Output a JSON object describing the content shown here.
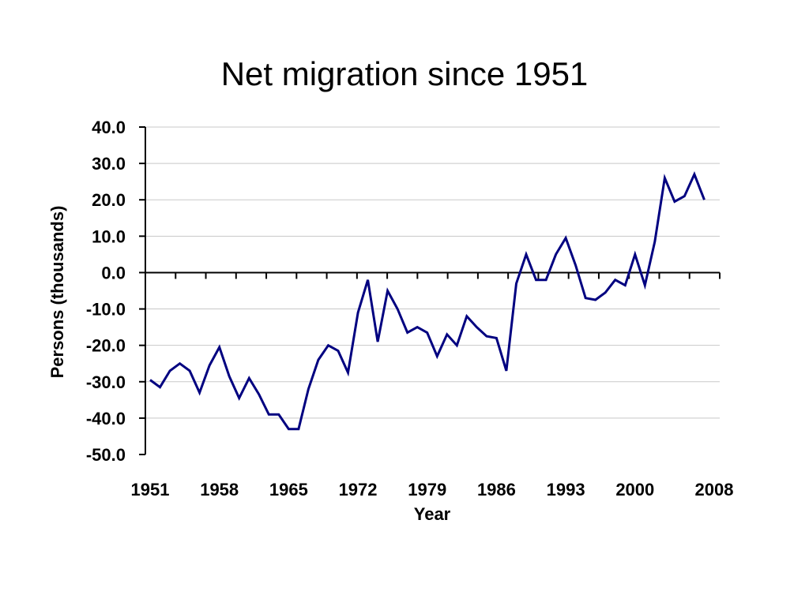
{
  "chart_data": {
    "type": "line",
    "title": "Net migration since 1951",
    "xlabel": "Year",
    "ylabel": "Persons (thousands)",
    "xlim": [
      1951,
      2008
    ],
    "ylim": [
      -50,
      40
    ],
    "x_ticks": [
      "1951",
      "1958",
      "1965",
      "1972",
      "1979",
      "1986",
      "1993",
      "2000",
      "2008"
    ],
    "y_ticks": [
      "40.0",
      "30.0",
      "20.0",
      "10.0",
      "0.0",
      "-10.0",
      "-20.0",
      "-30.0",
      "-40.0",
      "-50.0"
    ],
    "grid": true,
    "line_color": "#000080",
    "series": [
      {
        "x": [
          1951,
          1952,
          1953,
          1954,
          1955,
          1956,
          1957,
          1958,
          1959,
          1960,
          1961,
          1962,
          1963,
          1964,
          1965,
          1966,
          1967,
          1968,
          1969,
          1970,
          1971,
          1972,
          1973,
          1974,
          1975,
          1976,
          1977,
          1978,
          1979,
          1980,
          1981,
          1982,
          1983,
          1984,
          1985,
          1986,
          1987,
          1988,
          1989,
          1990,
          1991,
          1992,
          1993,
          1994,
          1995,
          1996,
          1997,
          1998,
          1999,
          2000,
          2001,
          2002,
          2003,
          2004,
          2005,
          2006,
          2007,
          2008
        ],
        "values": [
          -29.5,
          -31.5,
          -27,
          -25,
          -27,
          -33,
          -25.5,
          -20.5,
          -28.5,
          -34.5,
          -29,
          -33.5,
          -39,
          -39,
          -43,
          -43,
          -32,
          -24,
          -20,
          -21.5,
          -27.5,
          -11,
          -2,
          -19,
          -5,
          -10,
          -16.5,
          -15,
          -16.5,
          -23,
          -17,
          -20,
          -12,
          -15,
          -17.5,
          -18,
          -27,
          -3,
          5,
          -2,
          -2,
          5,
          9.5,
          2,
          -7,
          -7.5,
          -5.5,
          -2,
          -3.5,
          5,
          -3.5,
          8.5,
          26,
          19.5,
          21,
          27,
          20,
          null
        ]
      }
    ]
  }
}
